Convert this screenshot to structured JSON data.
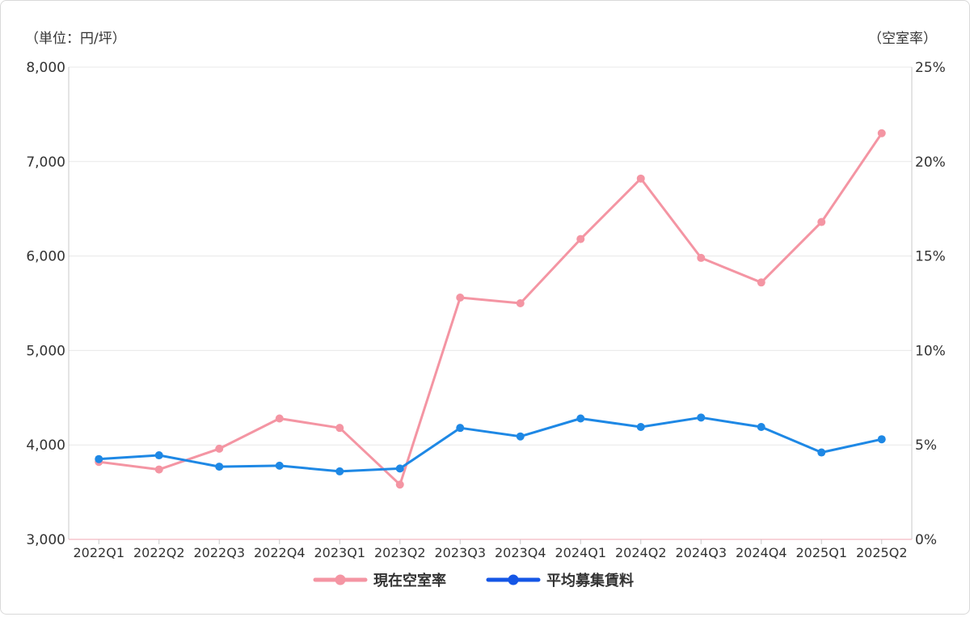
{
  "chart_data": {
    "type": "line",
    "left_axis_unit": "（単位：円/坪）",
    "right_axis_unit": "（空室率）",
    "categories": [
      "2022Q1",
      "2022Q2",
      "2022Q3",
      "2022Q4",
      "2023Q1",
      "2023Q2",
      "2023Q3",
      "2023Q4",
      "2024Q1",
      "2024Q2",
      "2024Q3",
      "2024Q4",
      "2025Q1",
      "2025Q2"
    ],
    "y_left": {
      "min": 3000,
      "max": 8000,
      "ticks": [
        3000,
        4000,
        5000,
        6000,
        7000,
        8000
      ],
      "tick_labels": [
        "3,000",
        "4,000",
        "5,000",
        "6,000",
        "7,000",
        "8,000"
      ]
    },
    "y_right": {
      "min": 0,
      "max": 25,
      "ticks": [
        0,
        5,
        10,
        15,
        20,
        25
      ],
      "tick_labels": [
        "0%",
        "5%",
        "10%",
        "15%",
        "20%",
        "25%"
      ]
    },
    "grid": true,
    "legend_position": "bottom",
    "series": [
      {
        "name": "現在空室率",
        "axis": "right",
        "color": "#f495a3",
        "values": [
          4.1,
          3.7,
          4.8,
          6.4,
          5.9,
          2.9,
          12.8,
          12.5,
          15.9,
          19.1,
          14.9,
          13.6,
          16.8,
          21.5
        ]
      },
      {
        "name": "平均募集賃料",
        "axis": "left",
        "color": "#1e88e5",
        "values": [
          3850,
          3890,
          3770,
          3780,
          3720,
          3750,
          4180,
          4090,
          4280,
          4190,
          4290,
          4190,
          3920,
          4060
        ]
      }
    ]
  },
  "colors": {
    "legend_vacancy": "#f495a3",
    "legend_rent": "#1456e6"
  }
}
